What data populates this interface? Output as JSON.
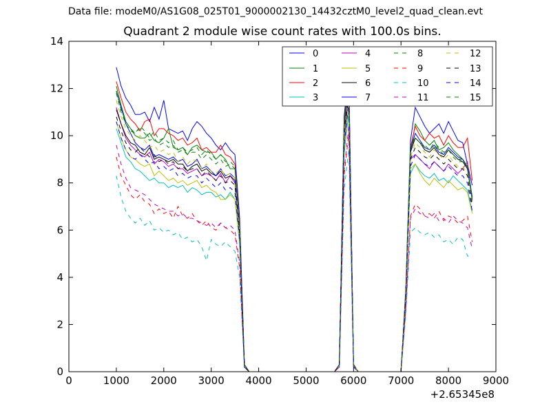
{
  "figure": {
    "suptitle": "Data file: modeM0/AS1G08_025T01_9000002130_14432cztM0_level2_quad_clean.evt"
  },
  "chart_data": {
    "type": "line",
    "title": "Quadrant 2 module wise count rates with 100.0s bins.",
    "xlabel": "",
    "ylabel": "",
    "x_offset_label": "+2.65345e8",
    "xlim": [
      0,
      9000
    ],
    "ylim": [
      0,
      14
    ],
    "xticks": [
      0,
      1000,
      2000,
      3000,
      4000,
      5000,
      6000,
      7000,
      8000,
      9000
    ],
    "yticks": [
      0,
      2,
      4,
      6,
      8,
      10,
      12,
      14
    ],
    "grid": false,
    "legend_position": "top-right",
    "legend_columns": 4,
    "x": [
      1000,
      1100,
      1200,
      1300,
      1400,
      1500,
      1600,
      1700,
      1800,
      1900,
      2000,
      2100,
      2200,
      2300,
      2400,
      2500,
      2600,
      2700,
      2800,
      2900,
      3000,
      3100,
      3200,
      3300,
      3400,
      3500,
      3600,
      3700,
      3800,
      5600,
      5700,
      5800,
      5900,
      6000,
      6100,
      7000,
      7100,
      7200,
      7300,
      7400,
      7500,
      7600,
      7700,
      7800,
      7900,
      8000,
      8100,
      8200,
      8300,
      8400,
      8500
    ],
    "series": [
      {
        "name": "0",
        "color": "#0000ff",
        "dash": "solid",
        "values": [
          12.9,
          12.1,
          11.6,
          11.3,
          10.9,
          10.9,
          11.0,
          10.6,
          11.2,
          10.7,
          11.5,
          10.3,
          10.2,
          10.1,
          10.2,
          9.8,
          10.3,
          10.6,
          10.4,
          10.1,
          9.9,
          9.6,
          9.4,
          9.7,
          9.4,
          9.2,
          6.5,
          0.3,
          0.0,
          0.0,
          0.3,
          10.8,
          12.8,
          0.3,
          0.0,
          0.0,
          3.5,
          9.8,
          11.2,
          10.8,
          10.4,
          10.1,
          10.3,
          10.5,
          10.1,
          10.6,
          10.2,
          9.8,
          9.7,
          8.8,
          7.9
        ]
      },
      {
        "name": "1",
        "color": "#008000",
        "dash": "solid",
        "values": [
          12.1,
          11.3,
          10.6,
          10.3,
          10.0,
          9.9,
          9.9,
          10.1,
          9.8,
          9.7,
          9.9,
          10.3,
          9.5,
          9.4,
          9.5,
          9.2,
          9.5,
          9.6,
          9.4,
          9.3,
          9.3,
          9.0,
          9.2,
          9.0,
          8.6,
          8.6,
          5.9,
          0.2,
          0.0,
          0.0,
          0.3,
          10.5,
          12.2,
          0.3,
          0.0,
          0.0,
          3.3,
          9.3,
          10.5,
          10.2,
          9.8,
          9.6,
          9.8,
          9.4,
          9.5,
          9.7,
          9.4,
          9.2,
          9.0,
          8.6,
          7.4
        ]
      },
      {
        "name": "2",
        "color": "#ff0000",
        "dash": "solid",
        "values": [
          12.3,
          11.6,
          11.0,
          10.7,
          10.5,
          10.2,
          10.6,
          10.7,
          10.0,
          10.3,
          10.3,
          10.1,
          10.0,
          9.8,
          9.9,
          9.6,
          9.7,
          9.9,
          9.4,
          9.5,
          9.3,
          9.3,
          9.6,
          9.2,
          9.1,
          8.8,
          6.2,
          0.3,
          0.0,
          0.0,
          0.3,
          10.6,
          12.5,
          0.3,
          0.0,
          0.0,
          3.4,
          9.5,
          10.4,
          10.0,
          9.8,
          10.1,
          9.9,
          10.0,
          9.6,
          10.0,
          9.7,
          9.5,
          9.5,
          9.9,
          8.1
        ]
      },
      {
        "name": "3",
        "color": "#00bfbf",
        "dash": "solid",
        "values": [
          10.3,
          9.7,
          9.1,
          8.9,
          8.6,
          8.5,
          8.3,
          8.1,
          8.2,
          8.0,
          8.0,
          7.8,
          7.9,
          7.8,
          7.9,
          7.6,
          7.8,
          7.7,
          7.5,
          7.6,
          7.6,
          7.4,
          7.5,
          7.3,
          7.6,
          7.3,
          5.4,
          0.2,
          0.0,
          0.0,
          0.3,
          9.2,
          11.0,
          0.2,
          0.0,
          0.0,
          3.0,
          8.4,
          8.8,
          8.5,
          8.3,
          8.2,
          8.4,
          8.1,
          8.2,
          8.0,
          8.3,
          8.1,
          7.9,
          7.7,
          6.8
        ]
      },
      {
        "name": "4",
        "color": "#bf00bf",
        "dash": "solid",
        "values": [
          11.2,
          10.5,
          9.9,
          9.6,
          9.4,
          9.2,
          9.1,
          9.3,
          8.8,
          9.0,
          8.9,
          8.7,
          8.8,
          8.6,
          8.6,
          8.4,
          8.5,
          8.6,
          8.3,
          8.4,
          8.3,
          8.1,
          8.4,
          8.0,
          8.3,
          8.0,
          5.8,
          0.2,
          0.0,
          0.0,
          0.3,
          9.8,
          11.8,
          0.3,
          0.0,
          0.0,
          3.2,
          9.0,
          9.2,
          9.0,
          8.8,
          8.6,
          8.9,
          8.7,
          8.5,
          8.8,
          8.6,
          8.4,
          8.6,
          8.9,
          7.2
        ]
      },
      {
        "name": "5",
        "color": "#bfbf00",
        "dash": "solid",
        "values": [
          10.6,
          9.9,
          9.4,
          9.1,
          9.0,
          8.8,
          8.7,
          8.8,
          8.3,
          8.5,
          8.3,
          8.1,
          8.2,
          8.0,
          8.1,
          7.9,
          8.0,
          8.1,
          7.8,
          7.9,
          7.7,
          7.6,
          7.3,
          7.3,
          7.5,
          7.3,
          5.5,
          0.2,
          0.0,
          0.0,
          0.3,
          9.4,
          11.3,
          0.2,
          0.0,
          0.0,
          3.0,
          8.6,
          8.8,
          8.4,
          8.1,
          7.9,
          8.2,
          8.0,
          7.8,
          8.1,
          7.9,
          7.7,
          7.8,
          7.6,
          6.7
        ]
      },
      {
        "name": "6",
        "color": "#000000",
        "dash": "solid",
        "values": [
          11.1,
          10.5,
          10.0,
          9.7,
          9.6,
          9.3,
          9.2,
          9.5,
          9.0,
          9.1,
          9.0,
          8.9,
          9.0,
          8.8,
          8.8,
          8.5,
          8.7,
          8.8,
          8.5,
          8.6,
          8.4,
          8.3,
          8.5,
          8.2,
          8.3,
          8.1,
          5.9,
          0.2,
          0.0,
          0.0,
          0.3,
          10.2,
          12.1,
          0.3,
          0.0,
          0.0,
          3.3,
          9.3,
          9.9,
          9.7,
          9.4,
          9.3,
          9.5,
          9.2,
          9.1,
          9.4,
          9.2,
          9.0,
          8.9,
          8.6,
          7.3
        ]
      },
      {
        "name": "7",
        "color": "#0000ff",
        "dash": "solid",
        "values": [
          11.9,
          11.2,
          10.5,
          10.1,
          9.7,
          9.5,
          9.4,
          9.6,
          9.1,
          9.2,
          9.1,
          9.0,
          9.1,
          8.9,
          9.0,
          8.7,
          8.8,
          9.0,
          8.6,
          8.7,
          8.5,
          8.3,
          8.6,
          8.3,
          8.4,
          8.2,
          6.0,
          0.2,
          0.0,
          0.0,
          0.3,
          10.4,
          12.4,
          0.3,
          0.0,
          0.0,
          3.3,
          9.4,
          10.1,
          9.8,
          9.5,
          9.4,
          9.6,
          9.3,
          9.2,
          9.5,
          9.3,
          9.1,
          9.0,
          8.7,
          7.4
        ]
      },
      {
        "name": "8",
        "color": "#008000",
        "dash": "dashed",
        "values": [
          11.9,
          11.1,
          10.6,
          10.3,
          10.1,
          10.4,
          10.2,
          9.9,
          10.2,
          9.8,
          9.9,
          9.7,
          9.8,
          9.4,
          9.5,
          9.3,
          9.4,
          9.5,
          9.2,
          9.4,
          9.2,
          9.0,
          9.2,
          8.9,
          8.9,
          8.7,
          6.1,
          0.3,
          0.0,
          0.0,
          0.3,
          10.5,
          12.3,
          0.3,
          0.0,
          0.0,
          3.4,
          9.6,
          9.9,
          9.7,
          9.6,
          9.4,
          9.7,
          9.5,
          9.3,
          9.4,
          9.1,
          8.9,
          8.9,
          8.7,
          7.3
        ]
      },
      {
        "name": "9",
        "color": "#ff0000",
        "dash": "dashed",
        "values": [
          9.1,
          8.3,
          7.9,
          7.5,
          7.3,
          7.5,
          7.2,
          7.1,
          6.7,
          6.9,
          6.7,
          6.8,
          6.5,
          7.0,
          6.6,
          6.5,
          6.7,
          6.4,
          6.2,
          6.4,
          6.1,
          6.0,
          6.3,
          6.1,
          6.0,
          5.8,
          4.4,
          0.2,
          0.0,
          0.0,
          0.2,
          8.3,
          10.1,
          0.2,
          0.0,
          0.0,
          2.6,
          6.6,
          7.1,
          6.9,
          6.6,
          6.7,
          6.5,
          6.8,
          6.4,
          6.6,
          6.5,
          6.3,
          6.4,
          6.6,
          5.5
        ]
      },
      {
        "name": "10",
        "color": "#00bfbf",
        "dash": "dashed",
        "values": [
          8.3,
          7.4,
          6.8,
          6.5,
          6.3,
          6.5,
          6.2,
          6.4,
          6.0,
          6.1,
          5.9,
          6.0,
          5.8,
          5.9,
          5.6,
          5.7,
          5.5,
          5.6,
          5.3,
          4.7,
          5.6,
          5.4,
          5.3,
          5.5,
          5.3,
          5.1,
          4.0,
          0.2,
          0.0,
          0.0,
          0.2,
          7.7,
          9.4,
          0.2,
          0.0,
          0.0,
          2.4,
          5.9,
          6.1,
          5.9,
          5.8,
          5.9,
          5.7,
          5.8,
          5.5,
          5.6,
          5.4,
          5.7,
          5.6,
          4.9,
          4.9
        ]
      },
      {
        "name": "11",
        "color": "#bf00bf",
        "dash": "dashed",
        "values": [
          9.6,
          8.8,
          8.2,
          7.8,
          7.7,
          7.6,
          7.5,
          7.3,
          7.1,
          7.0,
          6.9,
          6.8,
          6.8,
          6.6,
          6.7,
          6.5,
          6.5,
          6.4,
          6.3,
          6.2,
          6.3,
          6.1,
          6.3,
          6.1,
          6.2,
          6.0,
          4.6,
          0.2,
          0.0,
          0.0,
          0.2,
          8.5,
          10.4,
          0.2,
          0.0,
          0.0,
          2.7,
          6.5,
          6.9,
          6.7,
          6.6,
          6.5,
          6.7,
          6.4,
          6.5,
          6.3,
          6.6,
          6.4,
          6.3,
          6.1,
          5.2
        ]
      },
      {
        "name": "12",
        "color": "#bfbf00",
        "dash": "dashed",
        "values": [
          11.5,
          10.8,
          10.3,
          10.0,
          9.8,
          10.0,
          9.8,
          9.5,
          9.6,
          9.3,
          9.4,
          9.2,
          9.3,
          8.9,
          9.1,
          8.8,
          9.0,
          8.9,
          8.6,
          8.8,
          8.5,
          8.4,
          8.6,
          8.3,
          8.4,
          8.2,
          5.9,
          0.2,
          0.0,
          0.0,
          0.3,
          10.1,
          11.9,
          0.3,
          0.0,
          0.0,
          3.2,
          9.1,
          9.7,
          9.5,
          9.3,
          9.1,
          9.4,
          9.2,
          9.0,
          9.2,
          8.9,
          8.7,
          8.7,
          8.4,
          7.1
        ]
      },
      {
        "name": "13",
        "color": "#000000",
        "dash": "dashed",
        "values": [
          10.8,
          10.2,
          9.7,
          9.4,
          9.3,
          9.5,
          9.3,
          9.1,
          9.2,
          8.9,
          9.0,
          8.8,
          8.9,
          8.6,
          8.7,
          8.5,
          8.6,
          8.6,
          8.3,
          8.5,
          8.3,
          8.1,
          8.3,
          8.0,
          8.1,
          7.9,
          5.8,
          0.2,
          0.0,
          0.0,
          0.3,
          9.9,
          11.7,
          0.3,
          0.0,
          0.0,
          3.2,
          9.0,
          9.5,
          9.3,
          9.1,
          9.0,
          9.2,
          9.0,
          8.8,
          9.0,
          8.8,
          8.6,
          8.6,
          8.3,
          7.0
        ]
      },
      {
        "name": "14",
        "color": "#0000ff",
        "dash": "dashed",
        "values": [
          10.6,
          9.9,
          9.4,
          9.1,
          9.0,
          9.2,
          9.0,
          8.8,
          8.9,
          8.6,
          8.7,
          8.5,
          8.6,
          8.3,
          8.4,
          8.2,
          8.3,
          8.3,
          8.0,
          8.2,
          8.0,
          7.8,
          8.0,
          7.7,
          7.8,
          7.6,
          5.6,
          0.2,
          0.0,
          0.0,
          0.3,
          9.6,
          11.4,
          0.2,
          0.0,
          0.0,
          3.1,
          8.7,
          9.2,
          9.0,
          8.8,
          8.7,
          8.9,
          8.7,
          8.5,
          8.7,
          8.5,
          8.3,
          8.3,
          8.0,
          6.8
        ]
      },
      {
        "name": "15",
        "color": "#008000",
        "dash": "dashed",
        "values": [
          11.8,
          11.0,
          10.5,
          10.2,
          10.1,
          10.3,
          10.1,
          9.8,
          9.9,
          9.6,
          9.7,
          9.5,
          9.6,
          9.3,
          9.4,
          9.2,
          9.3,
          9.3,
          9.0,
          9.2,
          9.0,
          8.8,
          9.0,
          8.7,
          8.8,
          8.6,
          6.1,
          0.3,
          0.0,
          0.0,
          0.3,
          10.5,
          12.3,
          0.3,
          0.0,
          0.0,
          3.4,
          9.5,
          9.9,
          9.7,
          9.5,
          9.4,
          9.6,
          9.4,
          9.2,
          9.4,
          9.2,
          9.0,
          9.0,
          8.7,
          7.3
        ]
      }
    ]
  }
}
